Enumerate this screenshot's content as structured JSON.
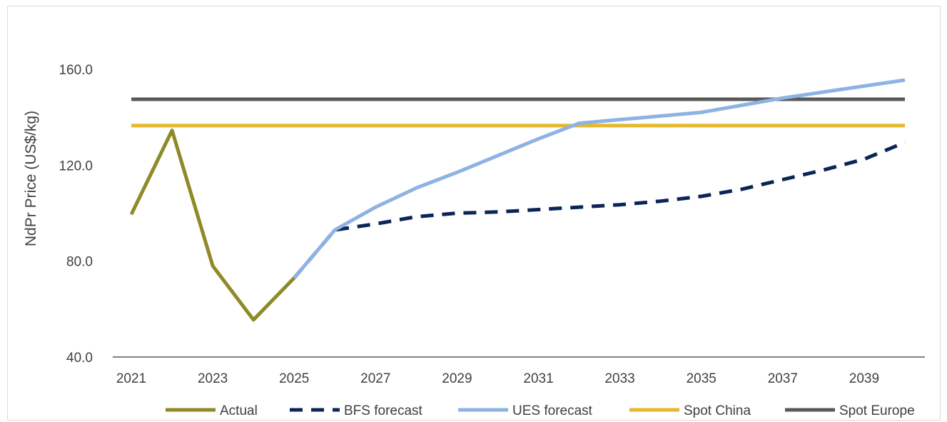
{
  "chart_data": {
    "type": "line",
    "title": "",
    "xlabel": "",
    "ylabel": "NdPr Price (US$/kg)",
    "xlim": [
      2021,
      2040
    ],
    "ylim": [
      40,
      160
    ],
    "y_ticks": [
      40,
      80,
      120,
      160
    ],
    "y_tick_labels": [
      "40.0",
      "80.0",
      "120.0",
      "160.0"
    ],
    "x_ticks": [
      2021,
      2023,
      2025,
      2027,
      2029,
      2031,
      2033,
      2035,
      2037,
      2039
    ],
    "x_tick_labels": [
      "2021",
      "2023",
      "2025",
      "2027",
      "2029",
      "2031",
      "2033",
      "2035",
      "2037",
      "2039"
    ],
    "grid": false,
    "legend_position": "bottom",
    "series": [
      {
        "name": "Actual",
        "color": "#8f8a27",
        "style": "solid",
        "x": [
          2021,
          2022,
          2023,
          2024,
          2025
        ],
        "y": [
          99.5,
          134.5,
          78,
          55.5,
          73
        ]
      },
      {
        "name": "BFS forecast",
        "color": "#0c2558",
        "style": "dashed",
        "x": [
          2025,
          2026,
          2027,
          2028,
          2029,
          2030,
          2031,
          2032,
          2033,
          2034,
          2035,
          2036,
          2037,
          2038,
          2039,
          2040
        ],
        "y": [
          73,
          93,
          95.5,
          98.5,
          100,
          100.5,
          101.5,
          102.5,
          103.5,
          105,
          107,
          110,
          114,
          118,
          122.5,
          129.5
        ]
      },
      {
        "name": "UES forecast",
        "color": "#8db3e2",
        "style": "solid",
        "x": [
          2025,
          2026,
          2027,
          2028,
          2029,
          2030,
          2031,
          2032,
          2033,
          2034,
          2035,
          2036,
          2037,
          2038,
          2039,
          2040
        ],
        "y": [
          73,
          93,
          102.5,
          110.5,
          117,
          124,
          131,
          137.5,
          139,
          140.5,
          142,
          145,
          148,
          150.5,
          153,
          155.5
        ]
      },
      {
        "name": "Spot China",
        "color": "#e6b82d",
        "style": "solid",
        "x": [
          2021,
          2040
        ],
        "y": [
          136.5,
          136.5
        ]
      },
      {
        "name": "Spot Europe",
        "color": "#595959",
        "style": "solid",
        "x": [
          2021,
          2040
        ],
        "y": [
          147.5,
          147.5
        ]
      }
    ]
  }
}
